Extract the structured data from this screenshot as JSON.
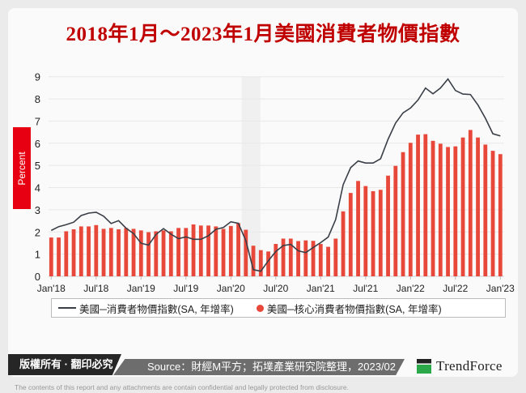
{
  "title": "2018年1月～2023年1月美國消費者物價指數",
  "footer": {
    "copyright": "版權所有 · 翻印必究",
    "source": "Source：財經M平方；拓墣產業研究院整理，2023/02",
    "logo": "TrendForce",
    "disclaimer": "The contents of this report and any attachments are contain confidential and legally protected from disclosure."
  },
  "colors": {
    "bar": "#e8483a",
    "line": "#3a3f47",
    "title": "#c00000",
    "shade": "#f0f0f0"
  },
  "chart_data": {
    "type": "bar+line",
    "title": "2018年1月～2023年1月美國消費者物價指數",
    "ylabel": "Percent",
    "ylim": [
      0,
      9
    ],
    "yticks": [
      "0",
      "1",
      "2",
      "3",
      "4",
      "5",
      "6",
      "7",
      "8",
      "9"
    ],
    "xticks": [
      "Jan'18",
      "Jul'18",
      "Jan'19",
      "Jul'19",
      "Jan'20",
      "Jul'20",
      "Jan'21",
      "Jul'21",
      "Jan'22",
      "Jul'22",
      "Jan'23"
    ],
    "xstart": "2018-01",
    "months": 61,
    "shaded_period": [
      "2020-02",
      "2020-04"
    ],
    "legend": "bottom",
    "series": [
      {
        "name": "美國─消費者物價指數(SA, 年增率)",
        "type": "line",
        "values": [
          2.07,
          2.24,
          2.33,
          2.44,
          2.74,
          2.85,
          2.89,
          2.71,
          2.38,
          2.51,
          2.17,
          1.93,
          1.49,
          1.41,
          1.89,
          2.15,
          1.9,
          1.7,
          1.78,
          1.67,
          1.67,
          1.83,
          2.12,
          2.2,
          2.46,
          2.39,
          1.61,
          0.3,
          0.23,
          0.7,
          1.12,
          1.39,
          1.44,
          1.15,
          1.07,
          1.3,
          1.52,
          1.77,
          2.56,
          4.13,
          4.9,
          5.2,
          5.11,
          5.11,
          5.3,
          6.18,
          6.91,
          7.37,
          7.59,
          7.95,
          8.49,
          8.23,
          8.49,
          8.9,
          8.38,
          8.22,
          8.2,
          7.73,
          7.13,
          6.43,
          6.33
        ]
      },
      {
        "name": "美國─核心消費者物價指數(SA, 年增率)",
        "type": "bar",
        "values": [
          1.75,
          1.75,
          2.03,
          2.12,
          2.25,
          2.25,
          2.31,
          2.14,
          2.18,
          2.12,
          2.18,
          2.14,
          2.07,
          1.99,
          2.03,
          2.07,
          2.03,
          2.18,
          2.18,
          2.34,
          2.29,
          2.29,
          2.25,
          2.14,
          2.27,
          2.4,
          2.1,
          1.38,
          1.18,
          1.12,
          1.46,
          1.7,
          1.7,
          1.59,
          1.62,
          1.6,
          1.46,
          1.33,
          1.7,
          2.93,
          3.76,
          4.3,
          4.07,
          3.84,
          3.9,
          4.54,
          4.98,
          5.6,
          6.02,
          6.39,
          6.41,
          6.11,
          5.98,
          5.83,
          5.86,
          6.26,
          6.6,
          6.26,
          5.94,
          5.66,
          5.51
        ]
      }
    ]
  }
}
